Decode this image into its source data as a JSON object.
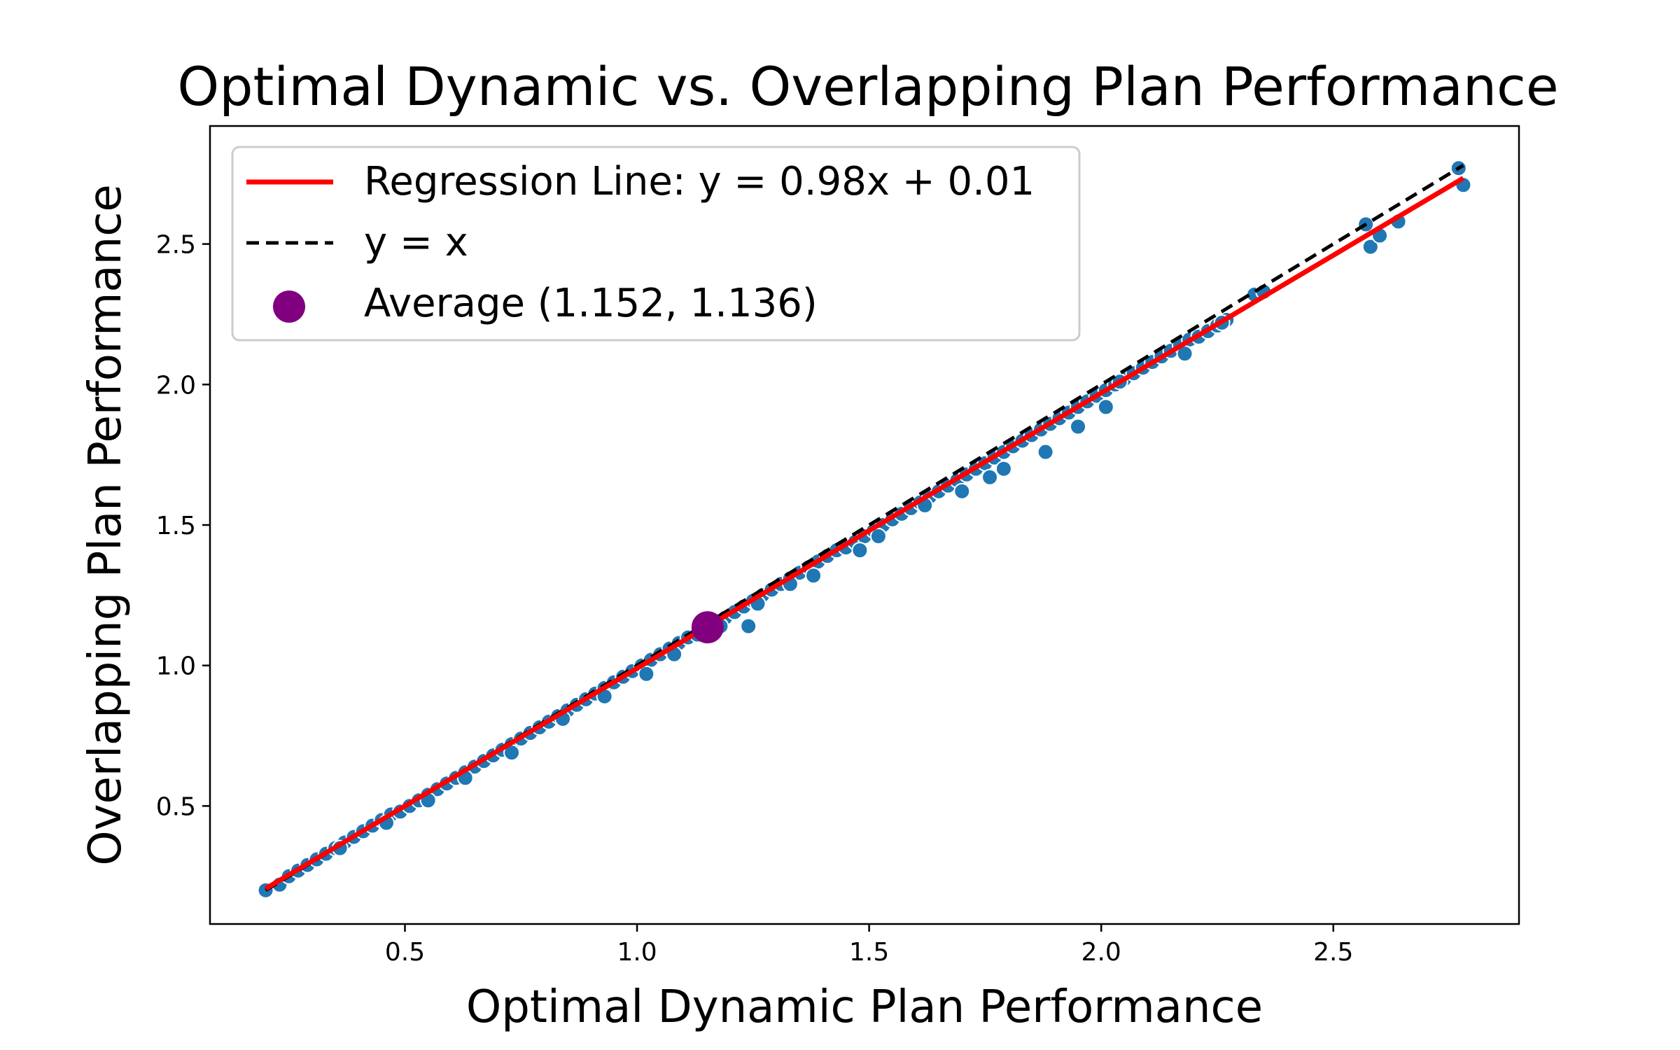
{
  "chart_data": {
    "type": "scatter",
    "title": "Optimal Dynamic vs. Overlapping Plan Performance",
    "xlabel": "Optimal Dynamic Plan Performance",
    "ylabel": "Overlapping Plan Performance",
    "xlim": [
      0.08,
      2.9
    ],
    "ylim": [
      0.08,
      2.92
    ],
    "xticks": [
      0.5,
      1.0,
      1.5,
      2.0,
      2.5
    ],
    "yticks": [
      0.5,
      1.0,
      1.5,
      2.0,
      2.5
    ],
    "xtick_labels": [
      "0.5",
      "1.0",
      "1.5",
      "2.0",
      "2.5"
    ],
    "ytick_labels": [
      "0.5",
      "1.0",
      "1.5",
      "2.0",
      "2.5"
    ],
    "grid": false,
    "legend": {
      "placement": "upper-left",
      "entries": [
        "Regression Line: y = 0.98x + 0.01",
        "y = x",
        "Average (1.152, 1.136)"
      ]
    },
    "series": [
      {
        "kind": "points",
        "color": "#1f77b4",
        "edgecolor": "#ffffff",
        "x": [
          0.2,
          0.23,
          0.25,
          0.27,
          0.29,
          0.31,
          0.33,
          0.35,
          0.37,
          0.39,
          0.41,
          0.43,
          0.45,
          0.47,
          0.49,
          0.51,
          0.53,
          0.55,
          0.57,
          0.59,
          0.61,
          0.63,
          0.65,
          0.67,
          0.69,
          0.71,
          0.73,
          0.75,
          0.77,
          0.79,
          0.81,
          0.83,
          0.85,
          0.87,
          0.89,
          0.91,
          0.93,
          0.95,
          0.97,
          0.99,
          1.01,
          1.03,
          1.05,
          1.07,
          1.09,
          1.11,
          1.13,
          1.15,
          1.17,
          1.19,
          1.21,
          1.23,
          1.25,
          1.27,
          1.29,
          1.31,
          1.33,
          1.35,
          1.37,
          1.39,
          1.41,
          1.43,
          1.45,
          1.47,
          1.49,
          1.51,
          1.53,
          1.55,
          1.57,
          1.59,
          1.61,
          1.63,
          1.65,
          1.67,
          1.69,
          1.71,
          1.73,
          1.75,
          1.77,
          1.79,
          1.81,
          1.83,
          1.85,
          1.87,
          1.89,
          1.91,
          1.93,
          1.95,
          1.97,
          1.99,
          2.01,
          2.03,
          2.05,
          2.07,
          2.09,
          2.11,
          2.13,
          2.15,
          2.17,
          2.19,
          2.21,
          2.23,
          2.25,
          2.27,
          2.33,
          2.35,
          0.36,
          0.46,
          0.55,
          0.63,
          0.73,
          0.84,
          0.93,
          1.02,
          1.08,
          1.14,
          1.18,
          1.24,
          1.26,
          1.33,
          1.38,
          1.48,
          1.52,
          1.62,
          1.7,
          1.76,
          1.79,
          1.88,
          1.95,
          2.01,
          2.04,
          2.18,
          2.26,
          2.57,
          2.58,
          2.6,
          2.64,
          2.77,
          2.78
        ],
        "y": [
          0.2,
          0.22,
          0.25,
          0.27,
          0.29,
          0.31,
          0.33,
          0.35,
          0.37,
          0.39,
          0.41,
          0.43,
          0.45,
          0.47,
          0.48,
          0.5,
          0.52,
          0.54,
          0.56,
          0.58,
          0.6,
          0.62,
          0.64,
          0.66,
          0.68,
          0.7,
          0.72,
          0.74,
          0.76,
          0.78,
          0.8,
          0.82,
          0.84,
          0.86,
          0.88,
          0.9,
          0.92,
          0.94,
          0.96,
          0.98,
          1.0,
          1.02,
          1.04,
          1.06,
          1.08,
          1.1,
          1.11,
          1.13,
          1.15,
          1.17,
          1.19,
          1.21,
          1.23,
          1.25,
          1.27,
          1.29,
          1.31,
          1.33,
          1.35,
          1.37,
          1.39,
          1.41,
          1.42,
          1.44,
          1.46,
          1.48,
          1.5,
          1.52,
          1.54,
          1.56,
          1.58,
          1.6,
          1.62,
          1.64,
          1.66,
          1.68,
          1.7,
          1.72,
          1.74,
          1.76,
          1.78,
          1.8,
          1.82,
          1.84,
          1.86,
          1.88,
          1.9,
          1.92,
          1.94,
          1.96,
          1.98,
          2.0,
          2.02,
          2.04,
          2.06,
          2.08,
          2.1,
          2.12,
          2.14,
          2.16,
          2.17,
          2.19,
          2.21,
          2.23,
          2.32,
          2.33,
          0.35,
          0.44,
          0.52,
          0.6,
          0.69,
          0.81,
          0.89,
          0.97,
          1.04,
          1.12,
          1.14,
          1.14,
          1.22,
          1.29,
          1.32,
          1.41,
          1.46,
          1.57,
          1.62,
          1.67,
          1.7,
          1.76,
          1.85,
          1.92,
          2.01,
          2.11,
          2.22,
          2.57,
          2.49,
          2.53,
          2.58,
          2.77,
          2.71
        ]
      },
      {
        "kind": "line",
        "name": "Regression Line: y = 0.98x + 0.01",
        "color": "#ff0000",
        "slope": 0.98,
        "intercept": 0.01,
        "x": [
          0.2,
          2.78
        ]
      },
      {
        "kind": "line",
        "name": "y = x",
        "color": "#000000",
        "style": "dashed",
        "x": [
          0.2,
          2.78
        ],
        "y": [
          0.2,
          2.78
        ]
      },
      {
        "kind": "marker",
        "name": "Average (1.152, 1.136)",
        "color": "#800080",
        "x": [
          1.152
        ],
        "y": [
          1.136
        ]
      }
    ]
  }
}
